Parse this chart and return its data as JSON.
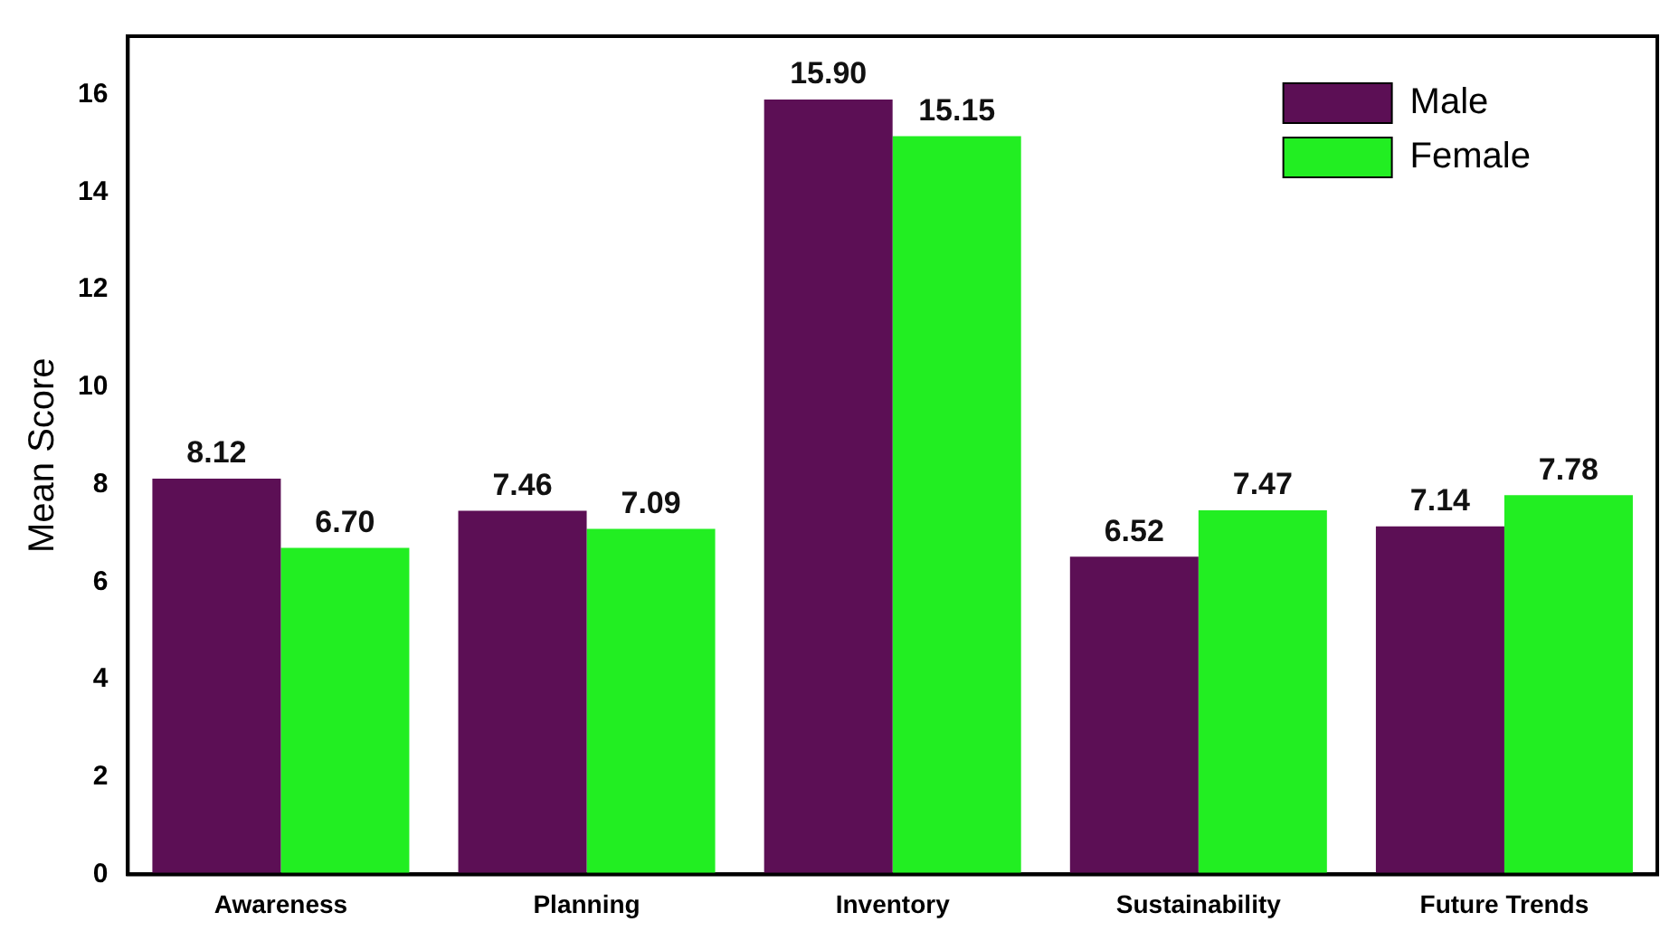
{
  "chart_data": {
    "type": "bar",
    "ylabel": "Mean Score",
    "categories": [
      "Awareness",
      "Planning",
      "Inventory",
      "Sustainability",
      "Future Trends"
    ],
    "series": [
      {
        "name": "Male",
        "color": "#5c0f55",
        "values": [
          8.12,
          7.46,
          15.9,
          6.52,
          7.14
        ],
        "value_labels": [
          "8.12",
          "7.46",
          "15.90",
          "6.52",
          "7.14"
        ]
      },
      {
        "name": "Female",
        "color": "#22ee22",
        "values": [
          6.7,
          7.09,
          15.15,
          7.47,
          7.78
        ],
        "value_labels": [
          "6.70",
          "7.09",
          "15.15",
          "7.47",
          "7.78"
        ]
      }
    ],
    "ylim": [
      0,
      17.2
    ],
    "yticks": [
      0,
      2,
      4,
      6,
      8,
      10,
      12,
      14,
      16
    ],
    "grid": false,
    "legend": "top right"
  }
}
